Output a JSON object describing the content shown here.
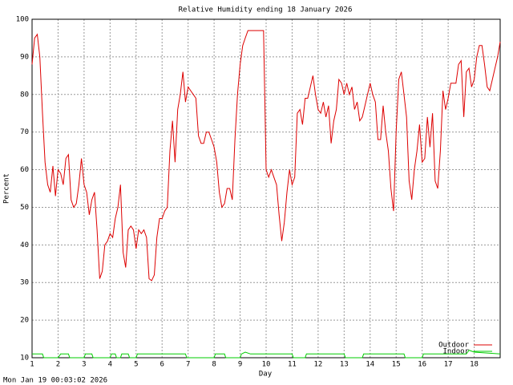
{
  "chart_data": {
    "type": "line",
    "title": "Relative Humidity ending 18 January 2026",
    "xlabel": "Day",
    "ylabel": "Percent",
    "timestamp": "Mon Jan 19 00:03:02 2026",
    "xlim": [
      1,
      19
    ],
    "ylim": [
      10,
      100
    ],
    "xticks": [
      1,
      2,
      3,
      4,
      5,
      6,
      7,
      8,
      9,
      10,
      11,
      12,
      13,
      14,
      15,
      16,
      17,
      18
    ],
    "yticks": [
      10,
      20,
      30,
      40,
      50,
      60,
      70,
      80,
      90,
      100
    ],
    "grid": true,
    "series": [
      {
        "name": "Outdoor",
        "color": "#dd0000",
        "x": [
          1.0,
          1.1,
          1.2,
          1.3,
          1.4,
          1.5,
          1.6,
          1.7,
          1.8,
          1.9,
          2.0,
          2.1,
          2.2,
          2.3,
          2.4,
          2.5,
          2.6,
          2.7,
          2.8,
          2.9,
          3.0,
          3.1,
          3.2,
          3.3,
          3.4,
          3.5,
          3.6,
          3.7,
          3.8,
          3.9,
          4.0,
          4.1,
          4.2,
          4.3,
          4.4,
          4.5,
          4.6,
          4.7,
          4.8,
          4.9,
          5.0,
          5.1,
          5.2,
          5.3,
          5.4,
          5.5,
          5.6,
          5.7,
          5.8,
          5.9,
          6.0,
          6.1,
          6.2,
          6.3,
          6.4,
          6.5,
          6.6,
          6.7,
          6.8,
          6.9,
          7.0,
          7.1,
          7.2,
          7.3,
          7.4,
          7.5,
          7.6,
          7.7,
          7.8,
          7.9,
          8.0,
          8.1,
          8.2,
          8.3,
          8.4,
          8.5,
          8.6,
          8.7,
          8.8,
          8.9,
          9.0,
          9.1,
          9.2,
          9.3,
          9.5,
          9.7,
          9.9,
          10.0,
          10.1,
          10.2,
          10.3,
          10.4,
          10.5,
          10.6,
          10.7,
          10.8,
          10.9,
          11.0,
          11.1,
          11.2,
          11.3,
          11.4,
          11.5,
          11.6,
          11.7,
          11.8,
          11.9,
          12.0,
          12.1,
          12.2,
          12.3,
          12.4,
          12.5,
          12.6,
          12.7,
          12.8,
          12.9,
          13.0,
          13.1,
          13.2,
          13.3,
          13.4,
          13.5,
          13.6,
          13.7,
          13.8,
          13.9,
          14.0,
          14.1,
          14.2,
          14.3,
          14.4,
          14.5,
          14.6,
          14.7,
          14.8,
          14.9,
          15.0,
          15.1,
          15.2,
          15.3,
          15.4,
          15.5,
          15.6,
          15.7,
          15.8,
          15.9,
          16.0,
          16.1,
          16.2,
          16.3,
          16.4,
          16.5,
          16.6,
          16.7,
          16.8,
          16.9,
          17.0,
          17.1,
          17.2,
          17.3,
          17.4,
          17.5,
          17.6,
          17.7,
          17.8,
          17.9,
          18.0,
          18.1,
          18.2,
          18.3,
          18.4,
          18.5,
          18.6,
          18.7,
          18.8,
          18.9,
          19.0
        ],
        "values": [
          88,
          95,
          96,
          90,
          75,
          62,
          56,
          54,
          61,
          53,
          60,
          59,
          56,
          63,
          64,
          52,
          50,
          51,
          56,
          63,
          56,
          54,
          48,
          52,
          54,
          44,
          31,
          33,
          40,
          41,
          43,
          42,
          47,
          50,
          56,
          38,
          34,
          44,
          45,
          44,
          39,
          44,
          43,
          44,
          42,
          31,
          30.5,
          32,
          42,
          47,
          47,
          49,
          50,
          65,
          73,
          62,
          76,
          80,
          86,
          78,
          82,
          81,
          80,
          79,
          69,
          67,
          67,
          70,
          70,
          68,
          66,
          62,
          54,
          50,
          51,
          55,
          55,
          52,
          68,
          80,
          88,
          93,
          95,
          97,
          97,
          97,
          97,
          60,
          58,
          60,
          58,
          56,
          48,
          41,
          46,
          54,
          60,
          56,
          58,
          75,
          76,
          72,
          79,
          79,
          82,
          85,
          80,
          76,
          75,
          78,
          74,
          77,
          67,
          73,
          76,
          84,
          83,
          80,
          83,
          80,
          82,
          76,
          78,
          73,
          74,
          77,
          80,
          83,
          80,
          78,
          68,
          68,
          77,
          70,
          65,
          55,
          49,
          70,
          84,
          86,
          80,
          74,
          57,
          52,
          60,
          65,
          72,
          62,
          63,
          74,
          66,
          75,
          57,
          55,
          65,
          81,
          76,
          79,
          83,
          83,
          83,
          88,
          89,
          74,
          86,
          87,
          82,
          84,
          90,
          93,
          93,
          88,
          82,
          81,
          84,
          87,
          90,
          94
        ]
      },
      {
        "name": "Indoor",
        "color": "#00cc00",
        "x": [
          1,
          1.4,
          1.45,
          2.0,
          2.1,
          2.4,
          2.45,
          3.0,
          3.05,
          3.3,
          3.35,
          4.0,
          4.05,
          4.2,
          4.25,
          4.4,
          4.45,
          4.7,
          4.75,
          5.0,
          5.05,
          6.9,
          6.95,
          8.0,
          8.05,
          8.4,
          8.45,
          9.0,
          9.05,
          9.2,
          9.4,
          11.0,
          11.05,
          11.5,
          11.55,
          13.0,
          13.05,
          13.7,
          13.75,
          15.3,
          15.35,
          16.0,
          16.05,
          17.7,
          17.8,
          18.0,
          19.0
        ],
        "values": [
          11,
          11,
          10,
          10,
          11,
          11,
          10,
          10,
          11,
          11,
          10,
          10,
          11,
          11,
          10,
          10,
          11,
          11,
          10,
          10,
          11,
          11,
          10,
          10,
          11,
          11,
          10,
          10,
          11,
          11.5,
          11,
          11,
          10,
          10,
          11,
          11,
          10,
          10,
          11,
          11,
          10,
          10,
          11,
          11,
          12,
          11.5,
          11
        ]
      }
    ]
  }
}
